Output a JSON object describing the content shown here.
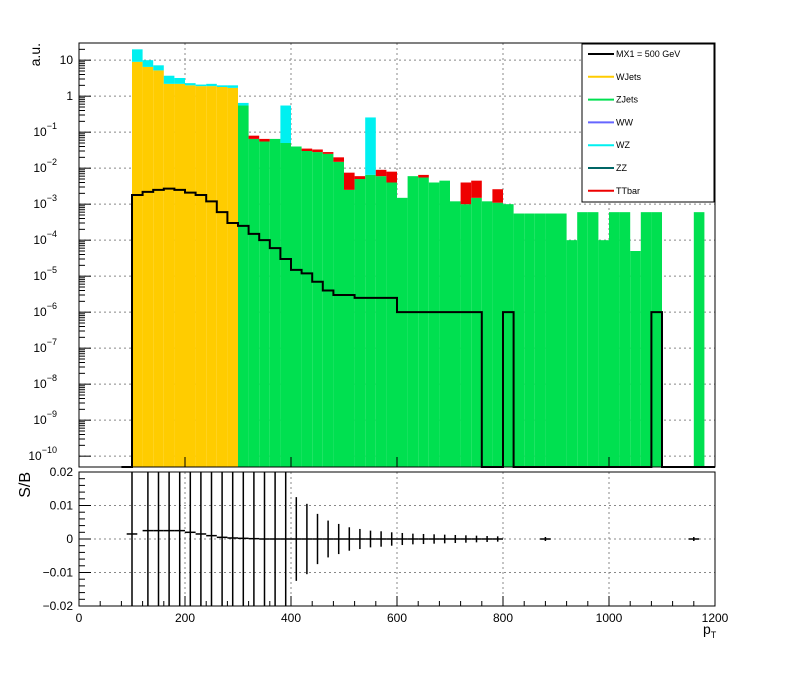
{
  "chart_data": [
    {
      "type": "bar",
      "panel": "top",
      "stacked": true,
      "ylabel": "a.u.",
      "xlim": [
        0,
        1200
      ],
      "ylog": true,
      "ylim": [
        5e-11,
        30
      ],
      "grid": true,
      "legend_position": "top-right",
      "y_ticks": [
        {
          "value": 1e-10,
          "label": "10",
          "exp": "−10"
        },
        {
          "value": 1e-09,
          "label": "10",
          "exp": "−9"
        },
        {
          "value": 1e-08,
          "label": "10",
          "exp": "−8"
        },
        {
          "value": 1e-07,
          "label": "10",
          "exp": "−7"
        },
        {
          "value": 1e-06,
          "label": "10",
          "exp": "−6"
        },
        {
          "value": 1e-05,
          "label": "10",
          "exp": "−5"
        },
        {
          "value": 0.0001,
          "label": "10",
          "exp": "−4"
        },
        {
          "value": 0.001,
          "label": "10",
          "exp": "−3"
        },
        {
          "value": 0.01,
          "label": "10",
          "exp": "−2"
        },
        {
          "value": 0.1,
          "label": "10",
          "exp": "−1"
        },
        {
          "value": 1,
          "label": "1",
          "exp": ""
        },
        {
          "value": 10,
          "label": "10",
          "exp": ""
        }
      ],
      "x_bin_edges": [
        80,
        100,
        120,
        140,
        160,
        180,
        200,
        220,
        240,
        260,
        280,
        300,
        320,
        340,
        360,
        380,
        400,
        420,
        440,
        460,
        480,
        500,
        520,
        540,
        560,
        580,
        600,
        620,
        640,
        660,
        680,
        700,
        720,
        740,
        760,
        780,
        800,
        820,
        840,
        860,
        880,
        900,
        920,
        940,
        960,
        980,
        1000,
        1020,
        1040,
        1060,
        1080,
        1100,
        1120,
        1140,
        1160,
        1180,
        1200
      ],
      "series": [
        {
          "name": "WJets",
          "color": "#ffcc00",
          "values": [
            0,
            9,
            6.5,
            5.2,
            2.2,
            2.2,
            2.0,
            1.9,
            1.9,
            1.8,
            1.7,
            0,
            0,
            0,
            0,
            0,
            0,
            0,
            0,
            0,
            0,
            0,
            0,
            0,
            0,
            0,
            0,
            0,
            0,
            0,
            0,
            0,
            0,
            0,
            0,
            0,
            0,
            0,
            0,
            0,
            0,
            0,
            0,
            0,
            0,
            0,
            0,
            0,
            0,
            0,
            0,
            0,
            0,
            0,
            0
          ]
        },
        {
          "name": "ZJets",
          "color": "#00e050",
          "values": [
            0,
            0,
            0,
            0,
            0,
            0,
            0,
            0,
            0,
            0,
            0,
            0.55,
            0.065,
            0.055,
            0.065,
            0.05,
            0.04,
            0.03,
            0.028,
            0.025,
            0.015,
            0.0025,
            0.005,
            0.0065,
            0.006,
            0.004,
            0.0015,
            0.006,
            0.0055,
            0.004,
            0.0045,
            0.0012,
            0.001,
            0.0015,
            0.0012,
            0.0011,
            0.001,
            0.00055,
            0.00055,
            0.00055,
            0.00055,
            0.00055,
            0.0001,
            0.0006,
            0.0006,
            0.0001,
            0.0006,
            0.0006,
            5e-05,
            0.0006,
            0.0006,
            0,
            0,
            0,
            0.0006
          ]
        },
        {
          "name": "WW",
          "color": "#6666ff",
          "values": []
        },
        {
          "name": "WZ",
          "color": "#00f0f0",
          "values": [
            0,
            11,
            3.5,
            2.0,
            1.5,
            1.0,
            0.3,
            0.2,
            0.3,
            0.2,
            0.3,
            0.1,
            0,
            0,
            0,
            0.5,
            0,
            0,
            0,
            0,
            0,
            0,
            0,
            0.25,
            0,
            0,
            0,
            0,
            0,
            0,
            0,
            0,
            0,
            0,
            0,
            0,
            0,
            0,
            0,
            0,
            0,
            0,
            0,
            0,
            0,
            0,
            0,
            0,
            0,
            0,
            0,
            0,
            0,
            0,
            0
          ]
        },
        {
          "name": "ZZ",
          "color": "#006666",
          "values": []
        },
        {
          "name": "TTbar",
          "color": "#ee0000",
          "values": [
            0,
            0,
            0,
            0,
            0,
            0,
            0,
            0,
            0,
            0,
            0,
            0,
            0.015,
            0.01,
            0,
            0,
            0,
            0.005,
            0.005,
            0.003,
            0.005,
            0.005,
            0.001,
            0,
            0.003,
            0.004,
            0,
            0,
            0.001,
            0,
            0,
            0,
            0.003,
            0.003,
            0,
            0.0015,
            0,
            0,
            0,
            0,
            0,
            0,
            0,
            0,
            0,
            0,
            0,
            0,
            0,
            0,
            0,
            0,
            0,
            0,
            0
          ]
        },
        {
          "name": "MX1 = 500 GeV",
          "color": "#000000",
          "style": "step",
          "values": [
            0,
            0.0018,
            0.0022,
            0.0025,
            0.0027,
            0.0025,
            0.0021,
            0.0018,
            0.0012,
            0.0006,
            0.0003,
            0.00025,
            0.00015,
            0.0001,
            6e-05,
            3e-05,
            1.5e-05,
            1.2e-05,
            7e-06,
            4e-06,
            3e-06,
            3e-06,
            2.5e-06,
            2.5e-06,
            2.5e-06,
            2.5e-06,
            1e-06,
            1e-06,
            1e-06,
            1e-06,
            1e-06,
            1e-06,
            1e-06,
            1e-06,
            0,
            0,
            1e-06,
            0,
            0,
            0,
            0,
            0,
            0,
            0,
            0,
            0,
            0,
            0,
            0,
            0,
            1e-06,
            0,
            0,
            0,
            0
          ]
        }
      ]
    },
    {
      "type": "scatter",
      "panel": "bottom",
      "ylabel": "S/B",
      "xlabel": "p",
      "xlabel_sub": "T",
      "xlim": [
        0,
        1200
      ],
      "ylim": [
        -0.02,
        0.02
      ],
      "grid": true,
      "x_ticks": [
        0,
        200,
        400,
        600,
        800,
        1000,
        1200
      ],
      "y_ticks": [
        {
          "value": 0.02,
          "label": "0.02"
        },
        {
          "value": 0.01,
          "label": "0.01"
        },
        {
          "value": 0,
          "label": "0"
        },
        {
          "value": -0.01,
          "label": "−0.01"
        },
        {
          "value": -0.02,
          "label": "−0.02"
        }
      ],
      "points": [
        {
          "x": 100,
          "xerr": 10,
          "y": 0.0015,
          "yerr": 0.03
        },
        {
          "x": 130,
          "xerr": 10,
          "y": 0.0025,
          "yerr": 0.03
        },
        {
          "x": 150,
          "xerr": 10,
          "y": 0.0025,
          "yerr": 0.03
        },
        {
          "x": 170,
          "xerr": 10,
          "y": 0.0025,
          "yerr": 0.03
        },
        {
          "x": 190,
          "xerr": 10,
          "y": 0.0025,
          "yerr": 0.03
        },
        {
          "x": 210,
          "xerr": 10,
          "y": 0.002,
          "yerr": 0.03
        },
        {
          "x": 230,
          "xerr": 10,
          "y": 0.0015,
          "yerr": 0.03
        },
        {
          "x": 250,
          "xerr": 10,
          "y": 0.001,
          "yerr": 0.03
        },
        {
          "x": 270,
          "xerr": 10,
          "y": 0.0005,
          "yerr": 0.03
        },
        {
          "x": 290,
          "xerr": 10,
          "y": 0.0003,
          "yerr": 0.03
        },
        {
          "x": 310,
          "xerr": 10,
          "y": 0.0002,
          "yerr": 0.03
        },
        {
          "x": 330,
          "xerr": 10,
          "y": 0.0001,
          "yerr": 0.03
        },
        {
          "x": 350,
          "xerr": 10,
          "y": 0.0,
          "yerr": 0.03
        },
        {
          "x": 370,
          "xerr": 10,
          "y": 0.0,
          "yerr": 0.03
        },
        {
          "x": 390,
          "xerr": 10,
          "y": 0.0,
          "yerr": 0.03
        },
        {
          "x": 410,
          "xerr": 10,
          "y": 0.0,
          "yerr": 0.0125
        },
        {
          "x": 430,
          "xerr": 10,
          "y": 0.0,
          "yerr": 0.0105
        },
        {
          "x": 450,
          "xerr": 10,
          "y": 0.0,
          "yerr": 0.0075
        },
        {
          "x": 470,
          "xerr": 10,
          "y": 0.0,
          "yerr": 0.0055
        },
        {
          "x": 490,
          "xerr": 10,
          "y": 0.0,
          "yerr": 0.0045
        },
        {
          "x": 510,
          "xerr": 10,
          "y": 0.0,
          "yerr": 0.0035
        },
        {
          "x": 530,
          "xerr": 10,
          "y": 0.0,
          "yerr": 0.003
        },
        {
          "x": 550,
          "xerr": 10,
          "y": 0.0,
          "yerr": 0.0025
        },
        {
          "x": 570,
          "xerr": 10,
          "y": 0.0,
          "yerr": 0.0023
        },
        {
          "x": 590,
          "xerr": 10,
          "y": 0.0,
          "yerr": 0.002
        },
        {
          "x": 610,
          "xerr": 10,
          "y": 0.0,
          "yerr": 0.0018
        },
        {
          "x": 630,
          "xerr": 10,
          "y": 0.0,
          "yerr": 0.0016
        },
        {
          "x": 650,
          "xerr": 10,
          "y": 0.0,
          "yerr": 0.0015
        },
        {
          "x": 670,
          "xerr": 10,
          "y": 0.0,
          "yerr": 0.0014
        },
        {
          "x": 690,
          "xerr": 10,
          "y": 0.0,
          "yerr": 0.0013
        },
        {
          "x": 710,
          "xerr": 10,
          "y": 0.0,
          "yerr": 0.0012
        },
        {
          "x": 730,
          "xerr": 10,
          "y": 0.0,
          "yerr": 0.0011
        },
        {
          "x": 750,
          "xerr": 10,
          "y": 0.0,
          "yerr": 0.001
        },
        {
          "x": 770,
          "xerr": 10,
          "y": 0.0,
          "yerr": 0.0009
        },
        {
          "x": 790,
          "xerr": 10,
          "y": 0.0,
          "yerr": 0.0008
        },
        {
          "x": 880,
          "xerr": 10,
          "y": 0.0,
          "yerr": 0.0006
        },
        {
          "x": 1160,
          "xerr": 10,
          "y": 0.0,
          "yerr": 0.0006
        }
      ]
    }
  ]
}
